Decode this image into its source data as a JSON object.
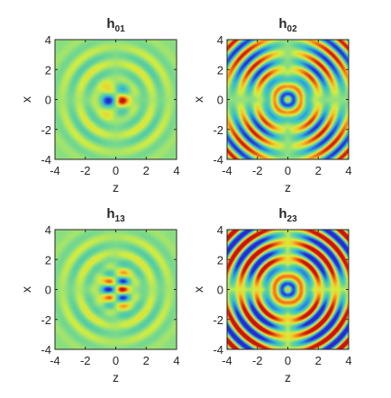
{
  "colors": {
    "colormap": [
      "#2a2ad0",
      "#2e7fe0",
      "#36c0d4",
      "#5ed09a",
      "#8fe07e",
      "#d6ec3c",
      "#f6c82e",
      "#f07a18",
      "#c81414"
    ],
    "background_level": "#8fe07e",
    "frame": "#262626"
  },
  "chart_data": [
    {
      "type": "heatmap",
      "title": "h",
      "title_subscript": "01",
      "xlabel": "z",
      "ylabel": "x",
      "xlim": [
        -4,
        4
      ],
      "ylim": [
        -4,
        4
      ],
      "xticks": [
        "-4",
        "-2",
        "0",
        "2",
        "4"
      ],
      "yticks": [
        "4",
        "2",
        "0",
        "-2",
        "-4"
      ],
      "pattern": "dipole"
    },
    {
      "type": "heatmap",
      "title": "h",
      "title_subscript": "02",
      "xlabel": "z",
      "ylabel": "x",
      "xlim": [
        -4,
        4
      ],
      "ylim": [
        -4,
        4
      ],
      "xticks": [
        "-4",
        "-2",
        "0",
        "2",
        "4"
      ],
      "yticks": [
        "4",
        "2",
        "0",
        "-2",
        "-4"
      ],
      "pattern": "quadrupole"
    },
    {
      "type": "heatmap",
      "title": "h",
      "title_subscript": "13",
      "xlabel": "z",
      "ylabel": "x",
      "xlim": [
        -4,
        4
      ],
      "ylim": [
        -4,
        4
      ],
      "xticks": [
        "-4",
        "-2",
        "0",
        "2",
        "4"
      ],
      "yticks": [
        "4",
        "2",
        "0",
        "-2",
        "-4"
      ],
      "pattern": "dipole-stacked"
    },
    {
      "type": "heatmap",
      "title": "h",
      "title_subscript": "23",
      "xlabel": "z",
      "ylabel": "x",
      "xlim": [
        -4,
        4
      ],
      "ylim": [
        -4,
        4
      ],
      "xticks": [
        "-4",
        "-2",
        "0",
        "2",
        "4"
      ],
      "yticks": [
        "4",
        "2",
        "0",
        "-2",
        "-4"
      ],
      "pattern": "quadrupole-strong"
    }
  ]
}
